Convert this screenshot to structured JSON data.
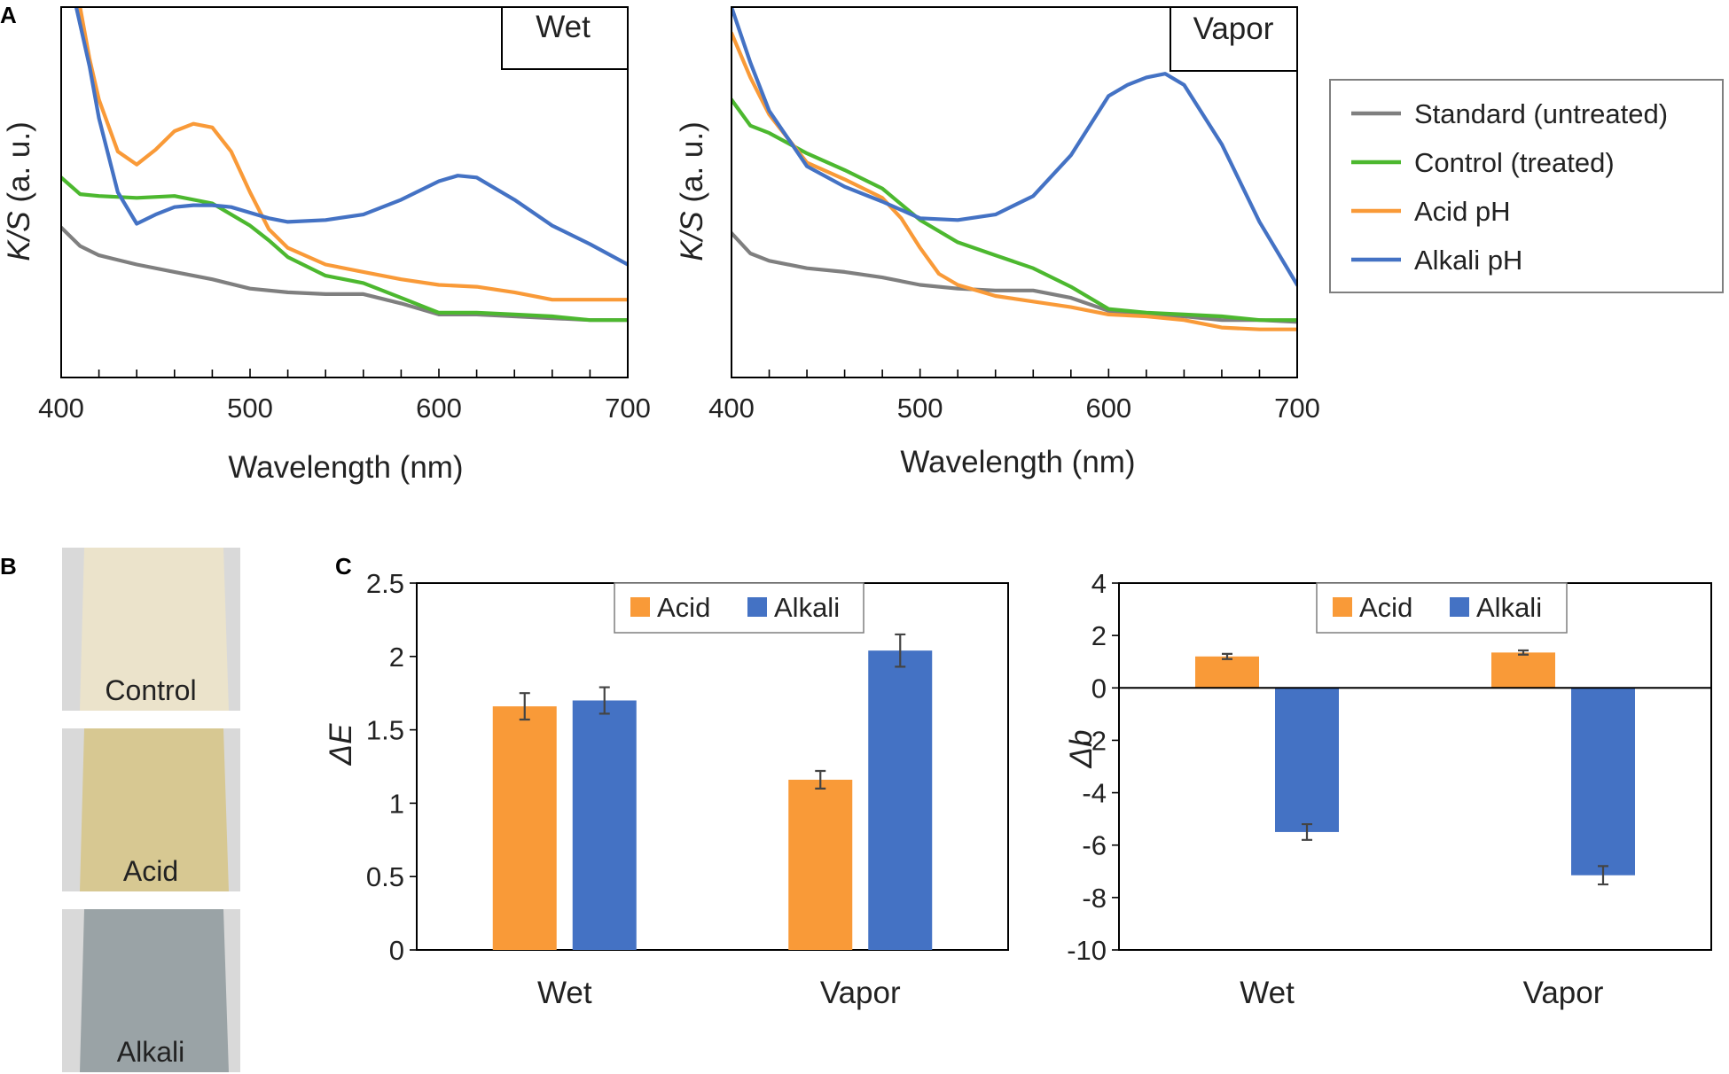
{
  "panels": {
    "a_letter": "A",
    "b_letter": "B",
    "c_letter": "C"
  },
  "colors": {
    "standard": "#7f7f7f",
    "control": "#4cb82f",
    "acid": "#f99a38",
    "alkali": "#4472c4"
  },
  "spectra_legend": [
    {
      "key": "standard",
      "label": "Standard (untreated)"
    },
    {
      "key": "control",
      "label": "Control (treated)"
    },
    {
      "key": "acid",
      "label": "Acid pH"
    },
    {
      "key": "alkali",
      "label": "Alkali pH"
    }
  ],
  "swatches": [
    {
      "label": "Control",
      "color": "#ebe3cb"
    },
    {
      "label": "Acid",
      "color": "#d7c892"
    },
    {
      "label": "Alkali",
      "color": "#9aa3a6"
    }
  ],
  "chart_data": [
    {
      "type": "line",
      "title": "Wet",
      "xlabel": "Wavelength (nm)",
      "ylabel_italic": "K/S",
      "ylabel_rest": " (a. u.)",
      "xlim": [
        400,
        700
      ],
      "ylim": [
        0,
        100
      ],
      "xticks": [
        400,
        500,
        600,
        700
      ],
      "series": [
        {
          "name": "Standard (untreated)",
          "key": "standard",
          "x": [
            400,
            410,
            420,
            440,
            460,
            480,
            500,
            520,
            540,
            560,
            580,
            600,
            620,
            640,
            660,
            680,
            700
          ],
          "y": [
            40.5,
            35.5,
            33,
            30.5,
            28.5,
            26.5,
            24,
            23,
            22.5,
            22.5,
            20,
            17,
            17,
            16.5,
            16,
            15.5,
            15.5
          ]
        },
        {
          "name": "Control (treated)",
          "key": "control",
          "x": [
            400,
            410,
            420,
            440,
            460,
            480,
            500,
            510,
            520,
            540,
            560,
            580,
            600,
            620,
            640,
            660,
            680,
            700
          ],
          "y": [
            54,
            49.5,
            49,
            48.5,
            49,
            47,
            41,
            37,
            32.5,
            27.5,
            25.5,
            21.5,
            17.5,
            17.5,
            17,
            16.5,
            15.5,
            15.5
          ]
        },
        {
          "name": "Acid pH",
          "key": "acid",
          "x": [
            410,
            415,
            420,
            430,
            440,
            450,
            460,
            470,
            480,
            490,
            500,
            510,
            520,
            540,
            560,
            580,
            600,
            620,
            640,
            660,
            680,
            700
          ],
          "y": [
            100,
            86,
            75,
            61,
            57.5,
            61.5,
            66.5,
            68.5,
            67.5,
            61,
            50,
            40,
            35,
            30.5,
            28.5,
            26.5,
            25,
            24.5,
            23,
            21,
            21,
            21
          ]
        },
        {
          "name": "Alkali pH",
          "key": "alkali",
          "x": [
            408,
            415,
            420,
            430,
            440,
            450,
            460,
            470,
            480,
            490,
            500,
            510,
            520,
            540,
            560,
            580,
            600,
            610,
            620,
            640,
            660,
            680,
            700
          ],
          "y": [
            100,
            84,
            70,
            50,
            41.5,
            44,
            46,
            46.5,
            46.5,
            46,
            44.5,
            43,
            42,
            42.5,
            44,
            48,
            53,
            54.5,
            54,
            48,
            41,
            36,
            30.5
          ]
        }
      ]
    },
    {
      "type": "line",
      "title": "Vapor",
      "xlabel": "Wavelength (nm)",
      "ylabel_italic": "K/S",
      "ylabel_rest": " (a. u.)",
      "xlim": [
        400,
        700
      ],
      "ylim": [
        0,
        100
      ],
      "xticks": [
        400,
        500,
        600,
        700
      ],
      "series": [
        {
          "name": "Standard (untreated)",
          "key": "standard",
          "x": [
            400,
            410,
            420,
            440,
            460,
            480,
            500,
            520,
            540,
            560,
            580,
            600,
            620,
            640,
            660,
            680,
            700
          ],
          "y": [
            39,
            33.5,
            31.5,
            29.5,
            28.5,
            27,
            25,
            24,
            23.5,
            23.5,
            21.5,
            18,
            17,
            16.5,
            15.5,
            15.5,
            15
          ]
        },
        {
          "name": "Control (treated)",
          "key": "control",
          "x": [
            400,
            410,
            420,
            440,
            460,
            480,
            500,
            520,
            540,
            560,
            580,
            600,
            620,
            640,
            660,
            680,
            700
          ],
          "y": [
            75,
            68,
            66,
            60.5,
            56,
            51,
            42.5,
            36.5,
            33,
            29.5,
            24.5,
            18.5,
            17.5,
            17,
            16.5,
            15.5,
            15.5
          ]
        },
        {
          "name": "Acid pH",
          "key": "acid",
          "x": [
            400,
            410,
            420,
            440,
            460,
            480,
            490,
            500,
            510,
            520,
            540,
            560,
            580,
            600,
            620,
            640,
            660,
            680,
            700
          ],
          "y": [
            93,
            81,
            71,
            58,
            53.5,
            48.5,
            43,
            35,
            28,
            25,
            22,
            20.5,
            19,
            17,
            16.5,
            15.5,
            13.5,
            13,
            13
          ]
        },
        {
          "name": "Alkali pH",
          "key": "alkali",
          "x": [
            400,
            410,
            420,
            440,
            460,
            480,
            500,
            520,
            540,
            560,
            580,
            600,
            610,
            620,
            630,
            640,
            660,
            680,
            700
          ],
          "y": [
            100,
            85,
            72,
            57,
            51.5,
            47.5,
            43,
            42.5,
            44,
            49,
            60,
            76,
            79,
            81,
            82,
            79,
            63,
            42,
            25
          ]
        }
      ]
    },
    {
      "type": "bar",
      "ylabel": "ΔE",
      "categories": [
        "Wet",
        "Vapor"
      ],
      "ylim": [
        0,
        2.5
      ],
      "yticks": [
        "0",
        "0.5",
        "1",
        "1.5",
        "2",
        "2.5"
      ],
      "series": [
        {
          "name": "Acid",
          "key": "acid",
          "values": [
            1.66,
            1.16
          ],
          "errors": [
            0.09,
            0.06
          ]
        },
        {
          "name": "Alkali",
          "key": "alkali",
          "values": [
            1.7,
            2.04
          ],
          "errors": [
            0.09,
            0.11
          ]
        }
      ],
      "legend": "top-center"
    },
    {
      "type": "bar",
      "ylabel": "Δb",
      "categories": [
        "Wet",
        "Vapor"
      ],
      "ylim": [
        -10,
        4
      ],
      "yticks": [
        "-10",
        "-8",
        "-6",
        "-4",
        "-2",
        "0",
        "2",
        "4"
      ],
      "series": [
        {
          "name": "Acid",
          "key": "acid",
          "values": [
            1.2,
            1.35
          ],
          "errors": [
            0.1,
            0.08
          ]
        },
        {
          "name": "Alkali",
          "key": "alkali",
          "values": [
            -5.5,
            -7.15
          ],
          "errors": [
            0.3,
            0.35
          ]
        }
      ],
      "legend": "top-center"
    }
  ]
}
